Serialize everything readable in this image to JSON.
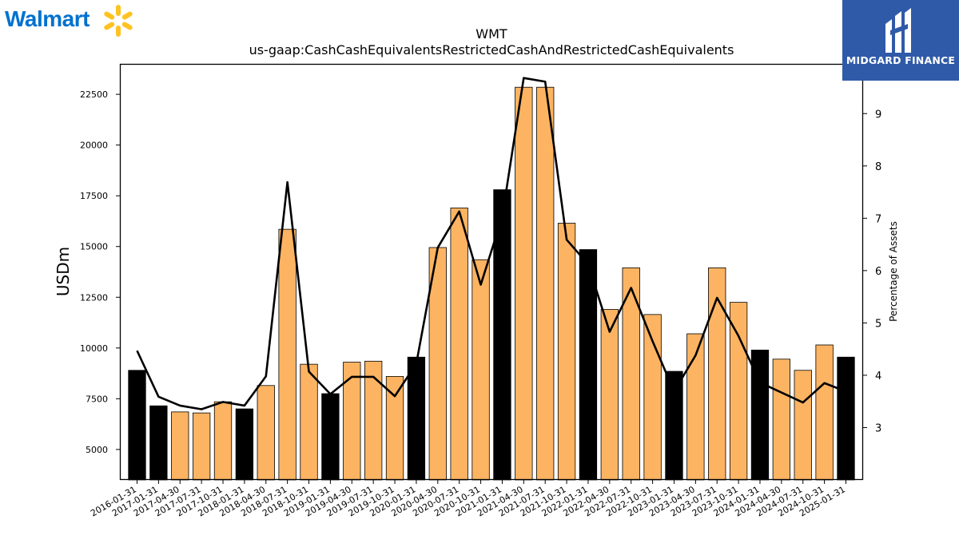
{
  "logos": {
    "left_wordmark": "Walmart",
    "left_spark_color": "#ffc220",
    "left_word_color": "#0071ce",
    "right_brand": "MIDGARD FINANCE",
    "right_bg_color": "#2f5aa8"
  },
  "chart_data": {
    "type": "bar",
    "title": "WMT",
    "subtitle": "us-gaap:CashCashEquivalentsRestrictedCashAndRestrictedCashEquivalents",
    "ylabel": "USDm",
    "y2label": "Percentage of Assets",
    "ylim": [
      3500,
      24000
    ],
    "y2lim": [
      2.0,
      9.95
    ],
    "yticks": [
      5000,
      7500,
      10000,
      12500,
      15000,
      17500,
      20000,
      22500
    ],
    "y2ticks": [
      3,
      4,
      5,
      6,
      7,
      8,
      9
    ],
    "grid": false,
    "categories": [
      "2016-01-31",
      "2017-01-31",
      "2017-04-30",
      "2017-07-31",
      "2017-10-31",
      "2018-01-31",
      "2018-04-30",
      "2018-07-31",
      "2018-10-31",
      "2019-01-31",
      "2019-04-30",
      "2019-07-31",
      "2019-10-31",
      "2020-01-31",
      "2020-04-30",
      "2020-07-31",
      "2020-10-31",
      "2021-01-31",
      "2021-04-30",
      "2021-07-31",
      "2021-10-31",
      "2022-01-31",
      "2022-04-30",
      "2022-07-31",
      "2022-10-31",
      "2023-01-31",
      "2023-04-30",
      "2023-07-31",
      "2023-10-31",
      "2024-01-31",
      "2024-04-30",
      "2024-07-31",
      "2024-10-31",
      "2025-01-31"
    ],
    "series": [
      {
        "kind": "bar",
        "values": [
          8900,
          7150,
          6850,
          6800,
          7350,
          7000,
          8150,
          15850,
          9200,
          7750,
          9300,
          9350,
          8600,
          9550,
          14950,
          16900,
          14350,
          17800,
          22850,
          22850,
          16150,
          14850,
          11900,
          13950,
          11650,
          8850,
          10700,
          13950,
          12250,
          9900,
          9450,
          8900,
          10150,
          9550
        ],
        "annual": [
          true,
          true,
          false,
          false,
          false,
          true,
          false,
          false,
          false,
          true,
          false,
          false,
          false,
          true,
          false,
          false,
          false,
          true,
          false,
          false,
          false,
          true,
          false,
          false,
          false,
          true,
          false,
          false,
          false,
          true,
          false,
          false,
          false,
          true
        ],
        "annual_color": "#000000",
        "quarter_color": "#fdb462"
      },
      {
        "kind": "line",
        "axis": "right",
        "color": "#000000",
        "values": [
          4.47,
          3.59,
          3.42,
          3.35,
          3.49,
          3.42,
          3.98,
          7.69,
          4.07,
          3.64,
          3.97,
          3.97,
          3.6,
          4.22,
          6.44,
          7.13,
          5.73,
          7.03,
          9.68,
          9.61,
          6.59,
          6.12,
          4.83,
          5.67,
          4.65,
          3.69,
          4.38,
          5.48,
          4.75,
          3.86,
          3.67,
          3.48,
          3.85,
          3.69
        ]
      }
    ]
  }
}
